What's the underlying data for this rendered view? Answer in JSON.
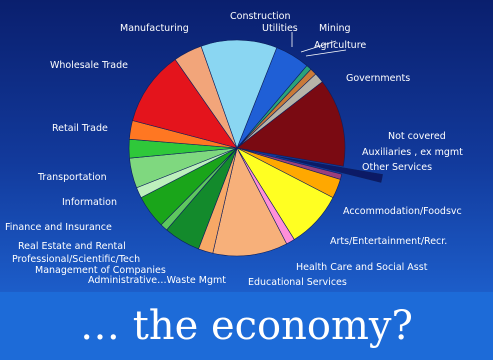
{
  "chart_data": {
    "type": "pie",
    "title": "",
    "categories": [
      "Construction",
      "Utilities",
      "Mining",
      "Agriculture",
      "Governments",
      "Not covered",
      "Auxiliaries, ex mgmt",
      "Other Services",
      "Accommodation/Foodsvc",
      "Arts/Entertainment/Recr.",
      "Health Care and Social Asst",
      "Educational Services",
      "Administrative.../Waste Mgmt",
      "Management of Companies",
      "Professional/Scientific/Tech",
      "Real Estate and Rental",
      "Finance and Insurance",
      "Information",
      "Transportation",
      "Retail Trade",
      "Wholesale Trade",
      "Manufacturing"
    ],
    "values": [
      5.2,
      0.8,
      1.0,
      1.5,
      13.2,
      1.2,
      0.8,
      2.9,
      8.5,
      1.3,
      11.2,
      2.2,
      5.5,
      1.1,
      5.0,
      1.6,
      4.5,
      2.8,
      2.8,
      11.2,
      4.3,
      11.4
    ],
    "colors": [
      "#1f5fd6",
      "#2aa37a",
      "#c97a38",
      "#b7b3a8",
      "#7a0a12",
      "#0c1a66",
      "#9a3f7c",
      "#ffa800",
      "#ffff22",
      "#ff8fd8",
      "#f7b07a",
      "#f7a866",
      "#138a2c",
      "#5ec85e",
      "#1aa51a",
      "#bdf0bd",
      "#7fd87f",
      "#2fc83a",
      "#ff7722",
      "#e4141c",
      "#f2a57a",
      "#8ad6f2"
    ],
    "exploded": [
      "Not covered"
    ],
    "labels": {
      "construction": "Construction",
      "utilities": "Utilities",
      "mining": "Mining",
      "agriculture": "Agriculture",
      "governments": "Governments",
      "not_covered": "Not covered",
      "auxiliaries": "Auxiliaries , ex mgmt",
      "other_services": "Other Services",
      "accommodation": "Accommodation/Foodsvc",
      "arts": "Arts/Entertainment/Recr.",
      "health": "Health Care and Social Asst",
      "educational": "Educational Services",
      "administrative": "Administrative…Waste Mgmt",
      "management": "Management of Companies",
      "professional": "Professional/Scientific/Tech",
      "real_estate": "Real Estate and Rental",
      "finance": "Finance and Insurance",
      "information": "Information",
      "transportation": "Transportation",
      "retail": "Retail Trade",
      "wholesale": "Wholesale Trade",
      "manufacturing": "Manufacturing"
    }
  },
  "slide": {
    "subtitle": "… the economy?",
    "background_top": "#0a1f6e",
    "band_color": "#1d6bd8"
  }
}
